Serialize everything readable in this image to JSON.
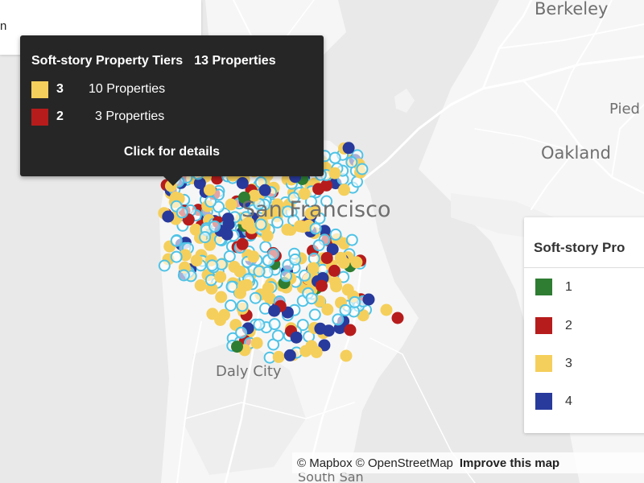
{
  "map": {
    "places": [
      {
        "name": "Berkeley",
        "label": "Berkeley"
      },
      {
        "name": "Piedmont",
        "label": "Pied"
      },
      {
        "name": "Oakland",
        "label": "Oakland"
      },
      {
        "name": "San Francisco",
        "label": "San Francisco"
      },
      {
        "name": "Daly City",
        "label": "Daly City"
      },
      {
        "name": "South San Francisco",
        "label": "South San"
      }
    ],
    "colors": {
      "water": "#e9e9e9",
      "land": "#f6f6f6",
      "road": "#ffffff",
      "property_outline": "#4fc3e6",
      "tier_1": "#2e7d32",
      "tier_2": "#b71c1c",
      "tier_3": "#f5cf5b",
      "tier_4": "#283a9c"
    }
  },
  "top_panel": {
    "fragment": "n"
  },
  "tooltip": {
    "title": "Soft-story Property Tiers",
    "total": "13 Properties",
    "rows": [
      {
        "tier": "3",
        "count": "10 Properties",
        "color": "#f5cf5b"
      },
      {
        "tier": "2",
        "count": "3 Properties",
        "color": "#b71c1c"
      }
    ],
    "cta": "Click for details"
  },
  "legend": {
    "title": "Soft-story Pro",
    "items": [
      {
        "label": "1",
        "color": "#2e7d32"
      },
      {
        "label": "2",
        "color": "#b71c1c"
      },
      {
        "label": "3",
        "color": "#f5cf5b"
      },
      {
        "label": "4",
        "color": "#283a9c"
      }
    ]
  },
  "attribution": {
    "mapbox": "© Mapbox",
    "osm": "© OpenStreetMap",
    "improve": "Improve this map"
  }
}
